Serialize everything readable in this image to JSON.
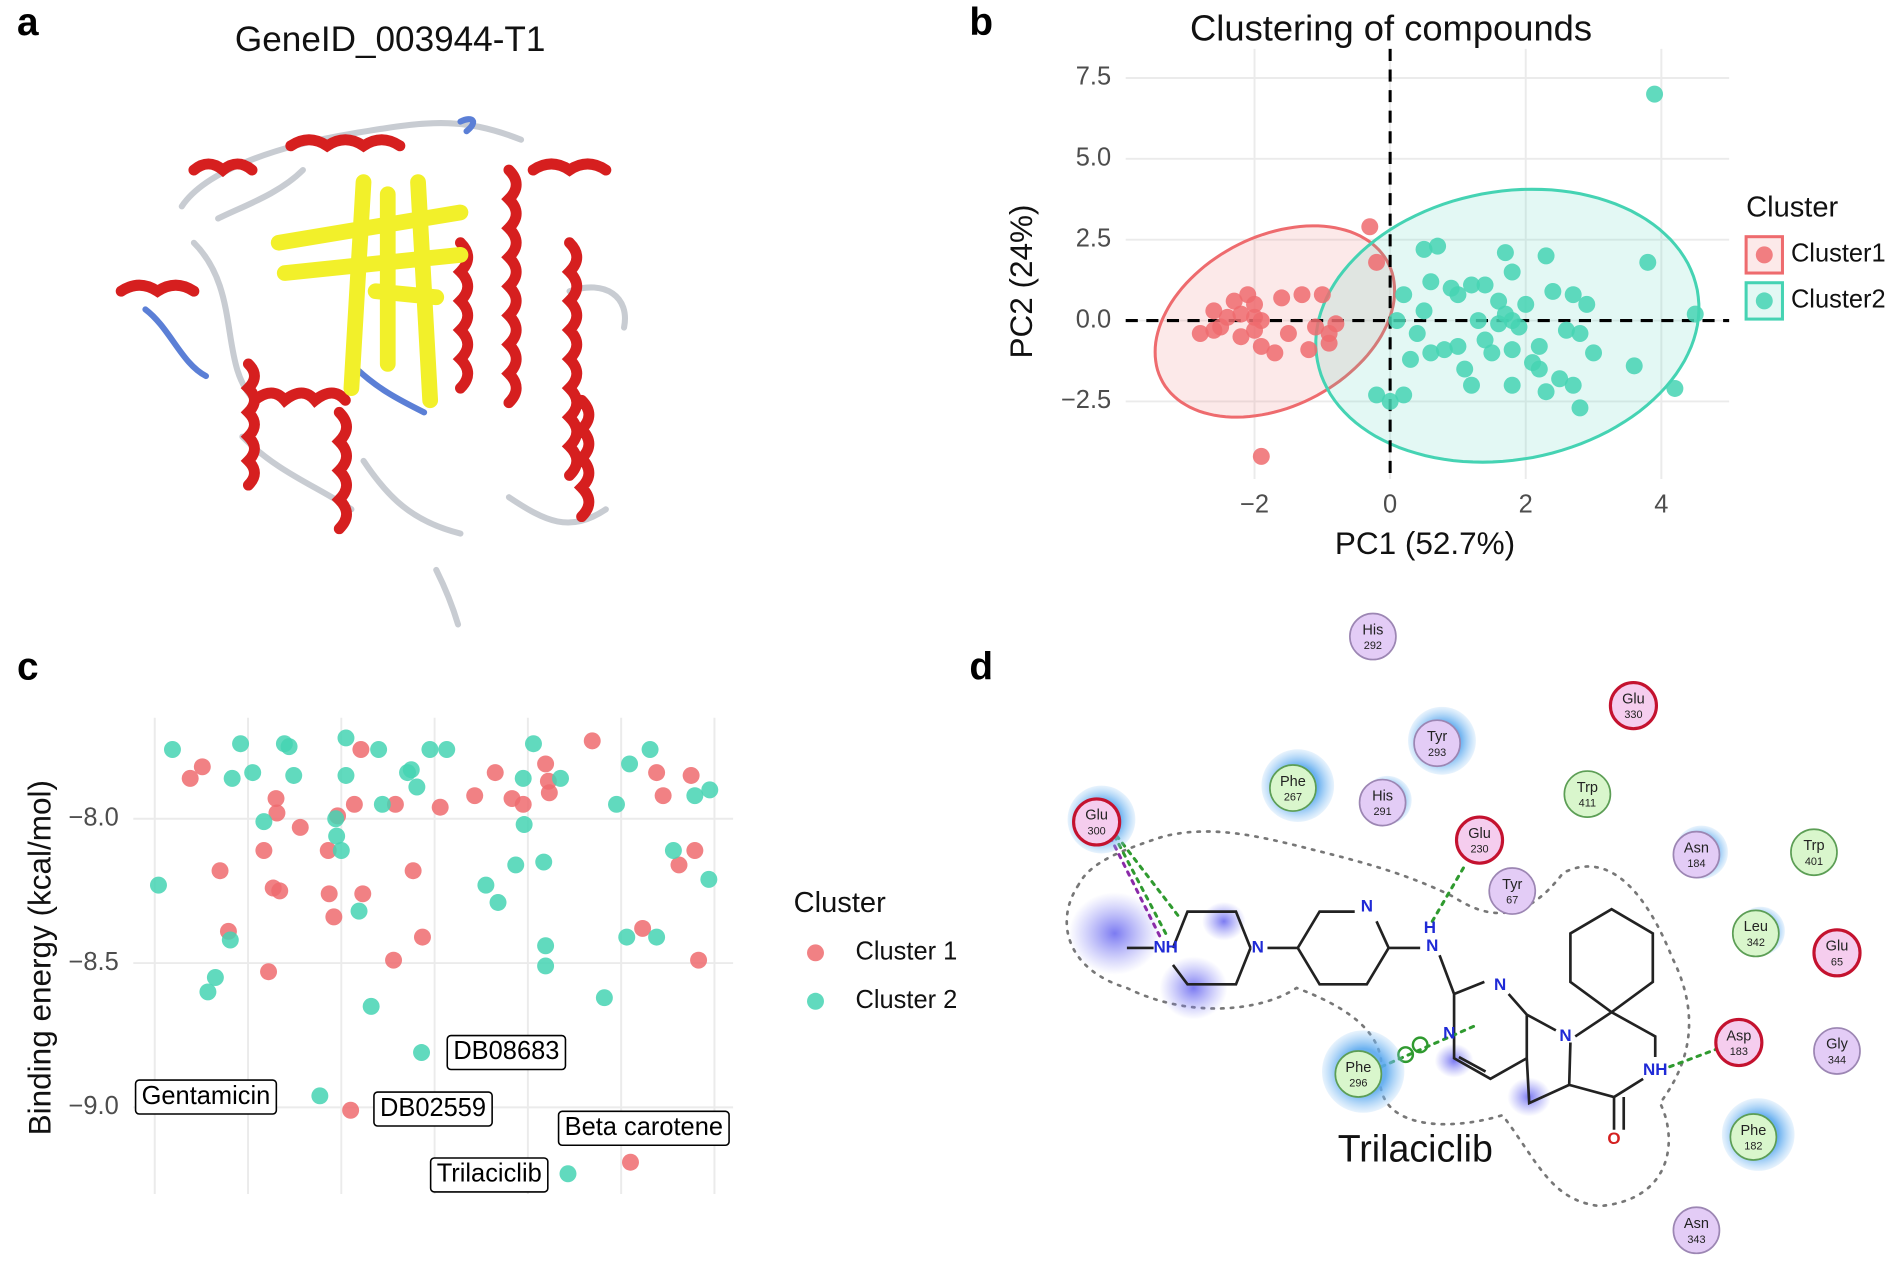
{
  "panel_labels": [
    "a",
    "b",
    "c",
    "d"
  ],
  "protein_structure": {
    "title": "GeneID_003944-T1"
  },
  "chart_data": [
    {
      "type": "scatter",
      "title": "Clustering of compounds",
      "xlabel": "PC1 (52.7%)",
      "ylabel": "PC2 (24%)",
      "xlim": [
        -3.9,
        5.0
      ],
      "ylim": [
        -4.9,
        8.4
      ],
      "xticks": [
        {
          "value": -2,
          "label": "−2"
        },
        0,
        2,
        4
      ],
      "yticks": [
        {
          "value": -2.5,
          "label": "−2.5"
        },
        {
          "value": 0,
          "label": "0.0"
        },
        2.5,
        {
          "value": 5,
          "label": "5.0"
        },
        7.5
      ],
      "grid": true,
      "hline": 0,
      "vline": 0,
      "ellipses": true,
      "legend": {
        "title": "Cluster",
        "position": "right"
      },
      "series": [
        {
          "name": "Cluster1",
          "color": "#ee6b6e",
          "x": [
            -2.1,
            -2.3,
            -2.0,
            -1.6,
            -1.3,
            -2.6,
            -2.4,
            -2.2,
            -2.0,
            -1.9,
            -2.5,
            -2.8,
            -2.6,
            -2.2,
            -1.9,
            -1.5,
            -1.1,
            -0.9,
            -0.9,
            -1.2,
            -1.7,
            -0.3,
            -0.2,
            -0.8,
            -1.9,
            -2.0,
            -1.0
          ],
          "values": [
            0.8,
            0.6,
            0.5,
            0.7,
            0.8,
            0.3,
            0.1,
            0.2,
            0.1,
            0.0,
            -0.2,
            -0.4,
            -0.3,
            -0.5,
            -0.8,
            -0.4,
            -0.2,
            -0.4,
            -0.7,
            -0.9,
            -1.0,
            2.9,
            1.8,
            -0.1,
            -4.2,
            -0.3,
            0.8
          ]
        },
        {
          "name": "Cluster2",
          "color": "#45d3b3",
          "x": [
            3.9,
            0.5,
            0.7,
            1.7,
            2.3,
            3.8,
            1.8,
            0.6,
            0.9,
            1.2,
            1.4,
            1.0,
            2.4,
            2.7,
            1.6,
            2.0,
            2.9,
            0.2,
            0.5,
            1.7,
            1.8,
            1.6,
            1.9,
            0.1,
            1.3,
            4.5,
            2.6,
            2.8,
            0.8,
            0.6,
            1.0,
            1.4,
            1.8,
            2.2,
            0.3,
            1.1,
            1.5,
            1.8,
            2.3,
            2.7,
            3.6,
            4.2,
            2.8,
            -0.2,
            0.0,
            0.2,
            1.2,
            2.1,
            2.5,
            0.4,
            3.0,
            2.2
          ],
          "values": [
            7.0,
            2.2,
            2.3,
            2.1,
            2.0,
            1.8,
            1.5,
            1.2,
            1.0,
            1.1,
            1.1,
            0.8,
            0.9,
            0.8,
            0.6,
            0.5,
            0.5,
            0.8,
            0.3,
            0.2,
            0.0,
            -0.1,
            -0.2,
            0.0,
            0.0,
            0.2,
            -0.3,
            -0.4,
            -0.9,
            -1.0,
            -0.8,
            -0.6,
            -0.9,
            -0.8,
            -1.2,
            -1.5,
            -1.0,
            -2.0,
            -2.2,
            -2.0,
            -1.4,
            -2.1,
            -2.7,
            -2.3,
            -2.5,
            -2.3,
            -2.0,
            -1.3,
            -1.8,
            -0.4,
            -1.0,
            -1.5
          ]
        }
      ]
    },
    {
      "type": "scatter",
      "ylabel": "Binding energy (kcal/mol)",
      "xlim": [
        -0.23,
        6.2
      ],
      "ylim": [
        -9.3,
        -7.65
      ],
      "xgrid": [
        0,
        1,
        2,
        3,
        4,
        5,
        6
      ],
      "yticks": [
        {
          "value": -9.0,
          "label": "−9.0"
        },
        {
          "value": -8.5,
          "label": "−8.5"
        },
        {
          "value": -8.0,
          "label": "−8.0"
        }
      ],
      "grid": true,
      "legend": {
        "title": "Cluster",
        "position": "right"
      },
      "series": [
        {
          "name": "Cluster 1",
          "color": "#ee6b6e",
          "x": [
            0.38,
            0.51,
            0.7,
            0.79,
            1.17,
            1.22,
            1.3,
            1.31,
            1.27,
            1.34,
            1.56,
            1.86,
            1.87,
            1.92,
            1.96,
            2.14,
            2.21,
            2.23,
            2.1,
            2.58,
            2.77,
            2.87,
            2.56,
            3.06,
            3.43,
            3.65,
            3.83,
            3.95,
            4.19,
            4.22,
            4.23,
            4.69,
            5.1,
            5.23,
            5.38,
            5.45,
            5.62,
            5.75,
            5.79,
            5.83
          ],
          "values": [
            -7.86,
            -7.82,
            -8.18,
            -8.39,
            -8.11,
            -8.53,
            -7.93,
            -7.98,
            -8.24,
            -8.25,
            -8.03,
            -8.11,
            -8.26,
            -8.34,
            -7.99,
            -7.95,
            -7.76,
            -8.26,
            -9.01,
            -7.95,
            -8.18,
            -8.41,
            -8.49,
            -7.96,
            -7.92,
            -7.84,
            -7.93,
            -7.95,
            -7.81,
            -7.87,
            -7.91,
            -7.73,
            -9.19,
            -8.38,
            -7.84,
            -7.92,
            -8.16,
            -7.85,
            -8.11,
            -8.49
          ]
        },
        {
          "name": "Cluster 2",
          "color": "#45d3b3",
          "x": [
            0.19,
            0.04,
            0.57,
            0.65,
            0.81,
            0.83,
            0.92,
            1.05,
            1.17,
            1.39,
            1.44,
            1.49,
            1.77,
            1.94,
            1.95,
            2.0,
            2.05,
            2.05,
            2.19,
            2.32,
            2.4,
            2.44,
            2.71,
            2.75,
            2.81,
            2.86,
            2.95,
            3.13,
            3.55,
            3.68,
            3.87,
            3.96,
            3.95,
            4.06,
            4.17,
            4.19,
            4.19,
            4.35,
            4.43,
            4.82,
            4.95,
            5.06,
            5.09,
            5.31,
            5.38,
            5.56,
            5.79,
            5.95,
            5.94
          ],
          "values": [
            -7.76,
            -8.23,
            -8.6,
            -8.55,
            -8.42,
            -7.86,
            -7.74,
            -7.84,
            -8.01,
            -7.74,
            -7.75,
            -7.85,
            -8.96,
            -8.0,
            -8.06,
            -8.11,
            -7.72,
            -7.85,
            -8.32,
            -8.65,
            -7.76,
            -7.95,
            -7.84,
            -7.83,
            -7.89,
            -8.81,
            -7.76,
            -7.76,
            -8.23,
            -8.29,
            -8.16,
            -8.02,
            -7.86,
            -7.74,
            -8.15,
            -8.44,
            -8.51,
            -7.86,
            -9.23,
            -8.62,
            -7.95,
            -8.41,
            -7.81,
            -7.76,
            -8.41,
            -8.11,
            -7.92,
            -7.9,
            -8.21
          ]
        }
      ],
      "annotations": [
        {
          "text": "Gentamicin",
          "x": 1.77,
          "y": -8.96
        },
        {
          "text": "DB08683",
          "x": 2.86,
          "y": -8.81
        },
        {
          "text": "DB02559",
          "x": 2.1,
          "y": -9.01
        },
        {
          "text": "Beta carotene",
          "x": 5.1,
          "y": -9.19
        },
        {
          "text": "Trilaciclib",
          "x": 4.43,
          "y": -9.23
        }
      ]
    }
  ],
  "interaction_diagram": {
    "ligand": "Trilaciclib",
    "residues": [
      {
        "name": "His",
        "number": 292,
        "color": "#e3ccf6",
        "border": "#9c86b3"
      },
      {
        "name": "Glu",
        "number": 330,
        "color": "#f5cdee",
        "border": "#c4122f"
      },
      {
        "name": "Tyr",
        "number": 293,
        "color": "#e3ccf6",
        "border": "#9c86b3"
      },
      {
        "name": "Phe",
        "number": 267,
        "color": "#d9f6cc",
        "border": "#5c9e55"
      },
      {
        "name": "His",
        "number": 291,
        "color": "#e3ccf6",
        "border": "#9c86b3"
      },
      {
        "name": "Trp",
        "number": 411,
        "color": "#d9f6cc",
        "border": "#5c9e55"
      },
      {
        "name": "Glu",
        "number": 300,
        "color": "#f5cdee",
        "border": "#c4122f"
      },
      {
        "name": "Glu",
        "number": 230,
        "color": "#f5cdee",
        "border": "#c4122f"
      },
      {
        "name": "Tyr",
        "number": 67,
        "color": "#e3ccf6",
        "border": "#9c86b3"
      },
      {
        "name": "Asn",
        "number": 184,
        "color": "#e3ccf6",
        "border": "#9c86b3"
      },
      {
        "name": "Trp",
        "number": 401,
        "color": "#d9f6cc",
        "border": "#5c9e55"
      },
      {
        "name": "Leu",
        "number": 342,
        "color": "#d9f6cc",
        "border": "#5c9e55"
      },
      {
        "name": "Glu",
        "number": 65,
        "color": "#f5cdee",
        "border": "#c4122f"
      },
      {
        "name": "Asp",
        "number": 183,
        "color": "#f5cdee",
        "border": "#c4122f"
      },
      {
        "name": "Gly",
        "number": 344,
        "color": "#e3ccf6",
        "border": "#9c86b3"
      },
      {
        "name": "Phe",
        "number": 296,
        "color": "#d9f6cc",
        "border": "#5c9e55"
      },
      {
        "name": "Phe",
        "number": 182,
        "color": "#d9f6cc",
        "border": "#5c9e55"
      },
      {
        "name": "Asn",
        "number": 343,
        "color": "#e3ccf6",
        "border": "#9c86b3"
      }
    ],
    "atoms": [
      "NH",
      "N",
      "N",
      "H",
      "N",
      "N",
      "N",
      "N",
      "NH",
      "O"
    ]
  }
}
